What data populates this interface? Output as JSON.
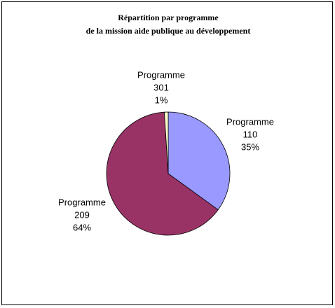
{
  "chart_data": {
    "type": "pie",
    "title": [
      "Répartition par programme",
      "de la mission aide publique au développement"
    ],
    "categories": [
      [
        "Programme",
        "110"
      ],
      [
        "Programme",
        "209"
      ],
      [
        "Programme",
        "301"
      ]
    ],
    "values": [
      35,
      64,
      1
    ],
    "value_labels": [
      "35%",
      "64%",
      "1%"
    ],
    "colors": [
      "#9999ff",
      "#993366",
      "#ffffcc"
    ]
  }
}
